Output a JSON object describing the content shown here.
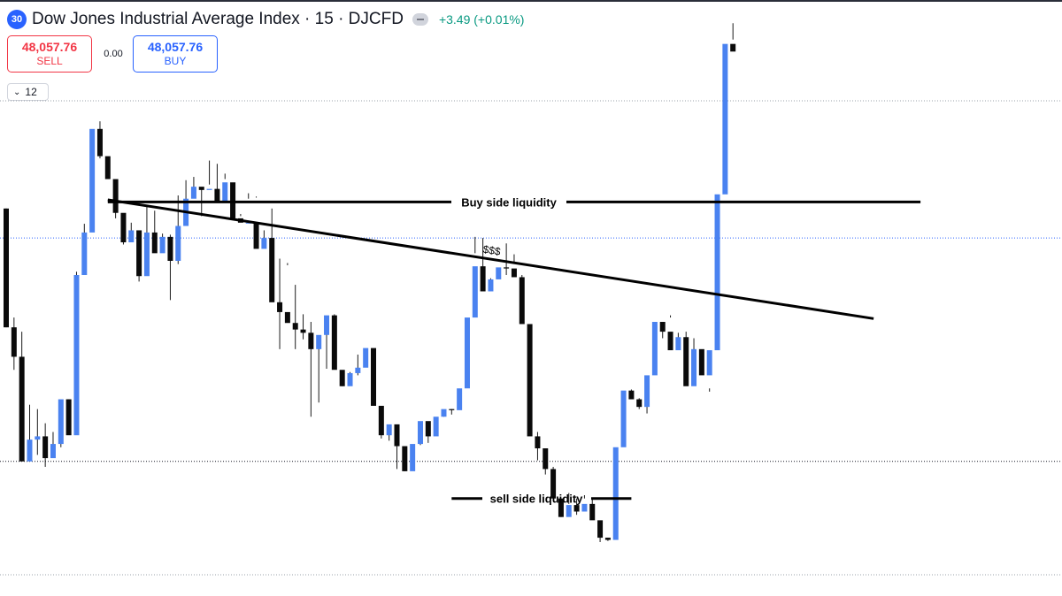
{
  "header": {
    "badge": "30",
    "title": "Dow Jones Industrial Average Index · 15 · DJCFD",
    "change": "+3.49 (+0.01%)"
  },
  "trade": {
    "sell_price": "48,057.76",
    "sell_label": "SELL",
    "spread": "0.00",
    "buy_price": "48,057.76",
    "buy_label": "BUY"
  },
  "indicators": {
    "count": "12"
  },
  "colors": {
    "up": "#4a82f0",
    "down": "#0a0a0a",
    "wick": "#1a1a1a",
    "annotation": "#000000"
  },
  "chart_data": {
    "type": "candlestick",
    "title": "Dow Jones Industrial Average Index · 15 · DJCFD",
    "interval": "15",
    "grid": false,
    "candles": [
      [
        47812,
        47812,
        47703,
        47703
      ],
      [
        47703,
        47712,
        47664,
        47676
      ],
      [
        47676,
        47699,
        47583,
        47580
      ],
      [
        47580,
        47632,
        47584,
        47600
      ],
      [
        47600,
        47628,
        47586,
        47603
      ],
      [
        47603,
        47615,
        47575,
        47583
      ],
      [
        47583,
        47607,
        47593,
        47596
      ],
      [
        47596,
        47634,
        47593,
        47637
      ],
      [
        47637,
        47637,
        47616,
        47604
      ],
      [
        47604,
        47754,
        47745,
        47751
      ],
      [
        47751,
        47798,
        47788,
        47790
      ],
      [
        47790,
        47880,
        47826,
        47885
      ],
      [
        47885,
        47892,
        47858,
        47860
      ],
      [
        47860,
        47849,
        47853,
        47839
      ],
      [
        47839,
        47835,
        47803,
        47808
      ],
      [
        47808,
        47797,
        47779,
        47781
      ],
      [
        47781,
        47799,
        47788,
        47792
      ],
      [
        47792,
        47780,
        47745,
        47750
      ],
      [
        47750,
        47814,
        47754,
        47790
      ],
      [
        47790,
        47810,
        47785,
        47771
      ],
      [
        47771,
        47789,
        47783,
        47786
      ],
      [
        47786,
        47788,
        47728,
        47764
      ],
      [
        47764,
        47824,
        47761,
        47796
      ],
      [
        47796,
        47838,
        47808,
        47821
      ],
      [
        47821,
        47841,
        47825,
        47832
      ],
      [
        47832,
        47831,
        47805,
        47829
      ],
      [
        47829,
        47856,
        47834,
        47830
      ],
      [
        47830,
        47853,
        47828,
        47818
      ],
      [
        47818,
        47844,
        47839,
        47836
      ],
      [
        47836,
        47822,
        47807,
        47803
      ],
      [
        47803,
        47807,
        47805,
        47799
      ],
      [
        47799,
        47826,
        47821,
        47799
      ],
      [
        47799,
        47822,
        47823,
        47775
      ],
      [
        47775,
        47792,
        47783,
        47785
      ],
      [
        47785,
        47812,
        47751,
        47726
      ],
      [
        47726,
        47766,
        47683,
        47717
      ],
      [
        47717,
        47762,
        47760,
        47707
      ],
      [
        47707,
        47742,
        47683,
        47701
      ],
      [
        47701,
        47715,
        47692,
        47698
      ],
      [
        47698,
        47708,
        47621,
        47683
      ],
      [
        47683,
        47690,
        47634,
        47696
      ],
      [
        47696,
        47712,
        47665,
        47714
      ],
      [
        47714,
        47715,
        47694,
        47664
      ],
      [
        47664,
        47655,
        47649,
        47649
      ],
      [
        47649,
        47662,
        47660,
        47661
      ],
      [
        47661,
        47659,
        47678,
        47666
      ],
      [
        47666,
        47681,
        47669,
        47684
      ],
      [
        47684,
        47682,
        47646,
        47631
      ],
      [
        47631,
        47626,
        47601,
        47604
      ],
      [
        47604,
        47608,
        47599,
        47614
      ],
      [
        47614,
        47609,
        47573,
        47594
      ],
      [
        47594,
        47575,
        47571,
        47571
      ],
      [
        47571,
        47594,
        47582,
        47596
      ],
      [
        47596,
        47595,
        47616,
        47617
      ],
      [
        47617,
        47615,
        47597,
        47603
      ],
      [
        47603,
        47611,
        47620,
        47621
      ],
      [
        47621,
        47621,
        47627,
        47628
      ],
      [
        47628,
        47628,
        47623,
        47627
      ],
      [
        47627,
        47630,
        47631,
        47647
      ],
      [
        47647,
        47683,
        47705,
        47712
      ],
      [
        47712,
        47771,
        47786,
        47759
      ],
      [
        47759,
        47785,
        47750,
        47736
      ],
      [
        47736,
        47736,
        47748,
        47747
      ],
      [
        47747,
        47751,
        47752,
        47758
      ],
      [
        47758,
        47780,
        47751,
        47757
      ],
      [
        47757,
        47770,
        47762,
        47749
      ],
      [
        47749,
        47751,
        47723,
        47706
      ],
      [
        47706,
        47704,
        47650,
        47603
      ],
      [
        47603,
        47607,
        47581,
        47592
      ],
      [
        47592,
        47580,
        47568,
        47573
      ],
      [
        47573,
        47575,
        47549,
        47546
      ],
      [
        47546,
        47541,
        47529,
        47529
      ],
      [
        47529,
        47551,
        47541,
        47540
      ],
      [
        47540,
        47546,
        47531,
        47534
      ],
      [
        47534,
        47549,
        47546,
        47541
      ],
      [
        47541,
        47545,
        47534,
        47526
      ],
      [
        47526,
        47525,
        47506,
        47510
      ],
      [
        47510,
        47510,
        47507,
        47508
      ],
      [
        47508,
        47536,
        47565,
        47593
      ],
      [
        47593,
        47642,
        47633,
        47645
      ],
      [
        47645,
        47642,
        47646,
        47637
      ],
      [
        47637,
        47638,
        47628,
        47630
      ],
      [
        47630,
        47624,
        47658,
        47659
      ],
      [
        47659,
        47685,
        47699,
        47708
      ],
      [
        47708,
        47702,
        47693,
        47699
      ],
      [
        47699,
        47712,
        47714,
        47682
      ],
      [
        47682,
        47689,
        47698,
        47694
      ],
      [
        47694,
        47699,
        47664,
        47649
      ],
      [
        47649,
        47669,
        47693,
        47683
      ],
      [
        47683,
        47672,
        47667,
        47659
      ],
      [
        47659,
        47644,
        47647,
        47682
      ],
      [
        47682,
        47695,
        47763,
        47825
      ],
      [
        47825,
        47826,
        47896,
        47963
      ],
      [
        47963,
        47982,
        47967,
        47956
      ]
    ],
    "annotations": [
      {
        "text": "Buy side liquidity",
        "type": "horizontal-line",
        "price": 47818
      },
      {
        "text": "$$$",
        "type": "trendline",
        "from_price": 47820,
        "to_price": 47711
      },
      {
        "text": "sell side liquidity",
        "type": "horizontal-line",
        "price": 47546
      }
    ],
    "reference_lines": [
      47785,
      47580
    ]
  }
}
